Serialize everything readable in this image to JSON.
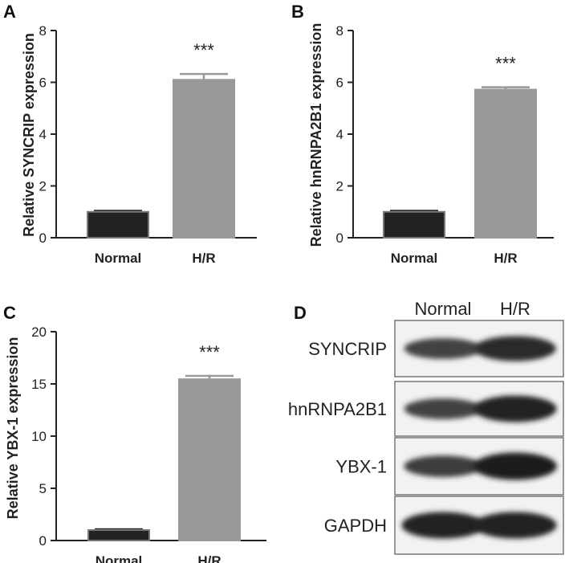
{
  "chart_data": [
    {
      "panel": "A",
      "type": "bar",
      "categories": [
        "Normal",
        "H/R"
      ],
      "values": [
        1.0,
        6.1
      ],
      "errors": [
        0.04,
        0.22
      ],
      "ylabel": "Relative SYNCRIP expression",
      "ylim": [
        0,
        8
      ],
      "yticks": [
        0,
        2,
        4,
        6,
        8
      ],
      "annotation": "***",
      "bar_colors": [
        "#222222",
        "#999999"
      ]
    },
    {
      "panel": "B",
      "type": "bar",
      "categories": [
        "Normal",
        "H/R"
      ],
      "values": [
        1.0,
        5.72
      ],
      "errors": [
        0.04,
        0.09
      ],
      "ylabel": "Relative hnRNPA2B1  expression",
      "ylim": [
        0,
        8
      ],
      "yticks": [
        0,
        2,
        4,
        6,
        8
      ],
      "annotation": "***",
      "bar_colors": [
        "#222222",
        "#999999"
      ]
    },
    {
      "panel": "C",
      "type": "bar",
      "categories": [
        "Normal",
        "H/R"
      ],
      "values": [
        1.0,
        15.45
      ],
      "errors": [
        0.08,
        0.32
      ],
      "ylabel": "Relative YBX-1  expression",
      "ylim": [
        0,
        20
      ],
      "yticks": [
        0,
        5,
        10,
        15,
        20
      ],
      "annotation": "***",
      "bar_colors": [
        "#222222",
        "#999999"
      ]
    }
  ],
  "blot": {
    "panel": "D",
    "columns": [
      "Normal",
      "H/R"
    ],
    "rows": [
      {
        "label": "SYNCRIP",
        "intensity": [
          0.55,
          0.85
        ]
      },
      {
        "label": "hnRNPA2B1",
        "intensity": [
          0.55,
          0.95
        ]
      },
      {
        "label": "YBX-1",
        "intensity": [
          0.6,
          1.0
        ]
      },
      {
        "label": "GAPDH",
        "intensity": [
          0.95,
          0.95
        ]
      }
    ]
  }
}
